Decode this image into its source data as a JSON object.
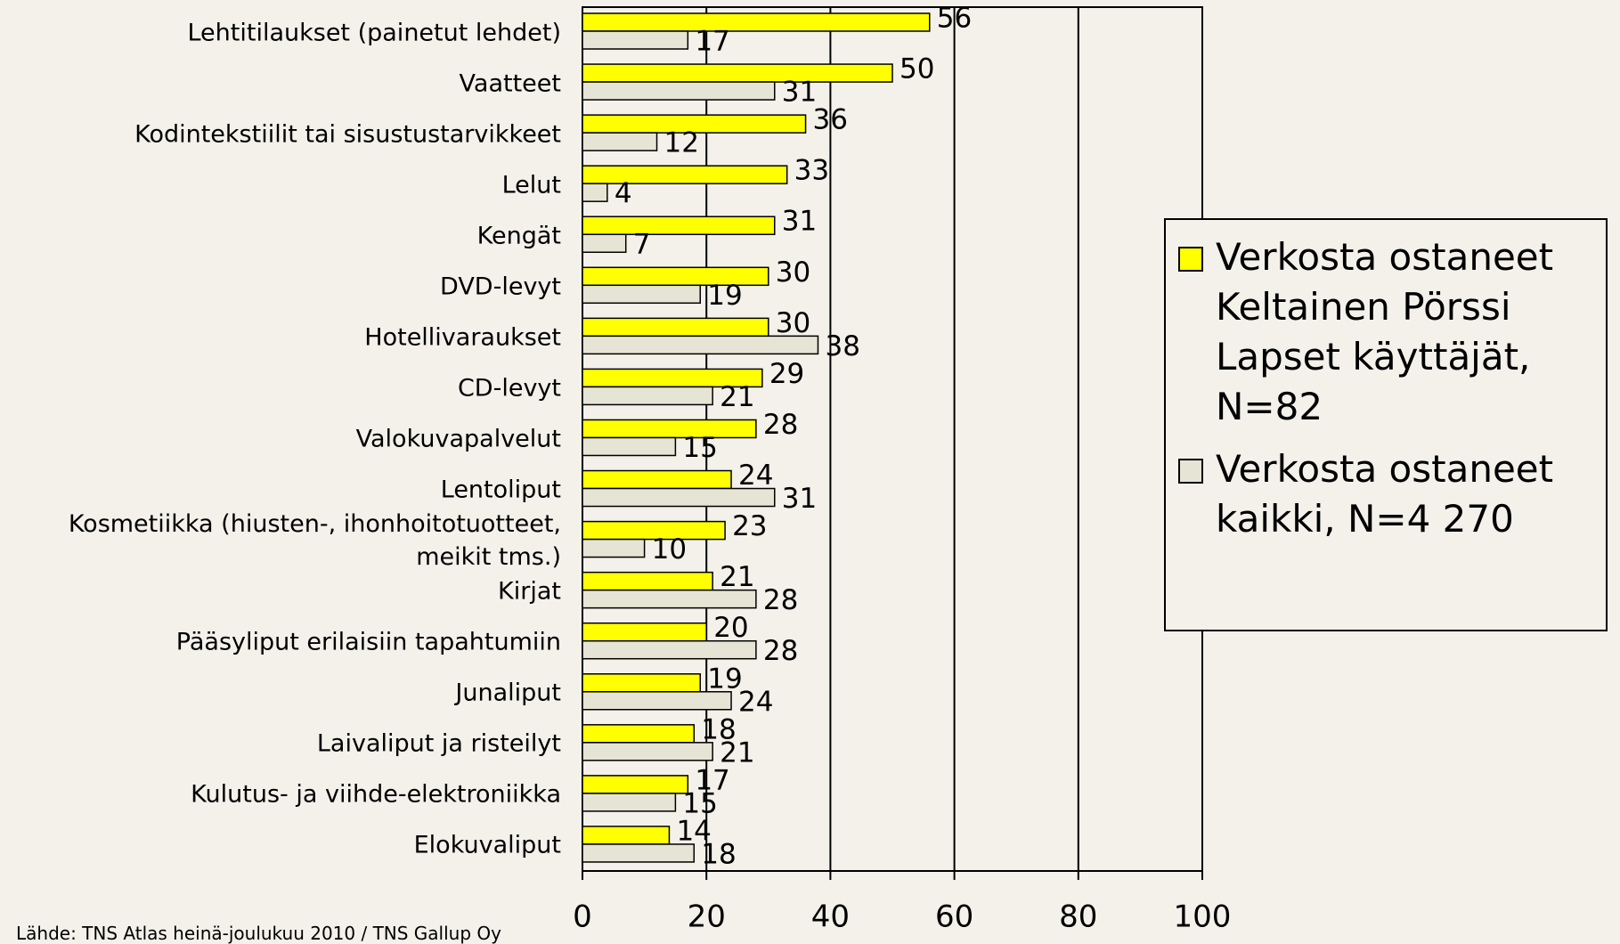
{
  "chart_data": {
    "type": "bar",
    "orientation": "horizontal",
    "categories": [
      "Lehtitilaukset (painetut lehdet)",
      "Vaatteet",
      "Kodintekstiilit tai sisustustarvikkeet",
      "Lelut",
      "Kengät",
      "DVD-levyt",
      "Hotellivaraukset",
      "CD-levyt",
      "Valokuvapalvelut",
      "Lentoliput",
      "Kosmetiikka (hiusten-, ihonhoitotuotteet, meikit tms.)",
      "Kirjat",
      "Pääsyliput erilaisiin tapahtumiin",
      "Junaliput",
      "Laivaliput ja risteilyt",
      "Kulutus- ja viihde-elektroniikka",
      "Elokuvaliput"
    ],
    "series": [
      {
        "name": "Verkosta ostaneet Keltainen Pörssi Lapset käyttäjät, N=82",
        "color": "#ffff00",
        "values": [
          56,
          50,
          36,
          33,
          31,
          30,
          30,
          29,
          28,
          24,
          23,
          21,
          20,
          19,
          18,
          17,
          14
        ]
      },
      {
        "name": "Verkosta ostaneet kaikki, N=4 270",
        "color": "#e6e4d4",
        "values": [
          17,
          31,
          12,
          4,
          7,
          19,
          38,
          21,
          15,
          31,
          10,
          28,
          28,
          24,
          21,
          15,
          18
        ]
      }
    ],
    "xlim": [
      0,
      100
    ],
    "xticks": [
      0,
      20,
      40,
      60,
      80,
      100
    ],
    "grid": true,
    "legend": "right",
    "source": "Lähde: TNS Atlas heinä-joulukuu 2010 / TNS Gallup Oy"
  }
}
